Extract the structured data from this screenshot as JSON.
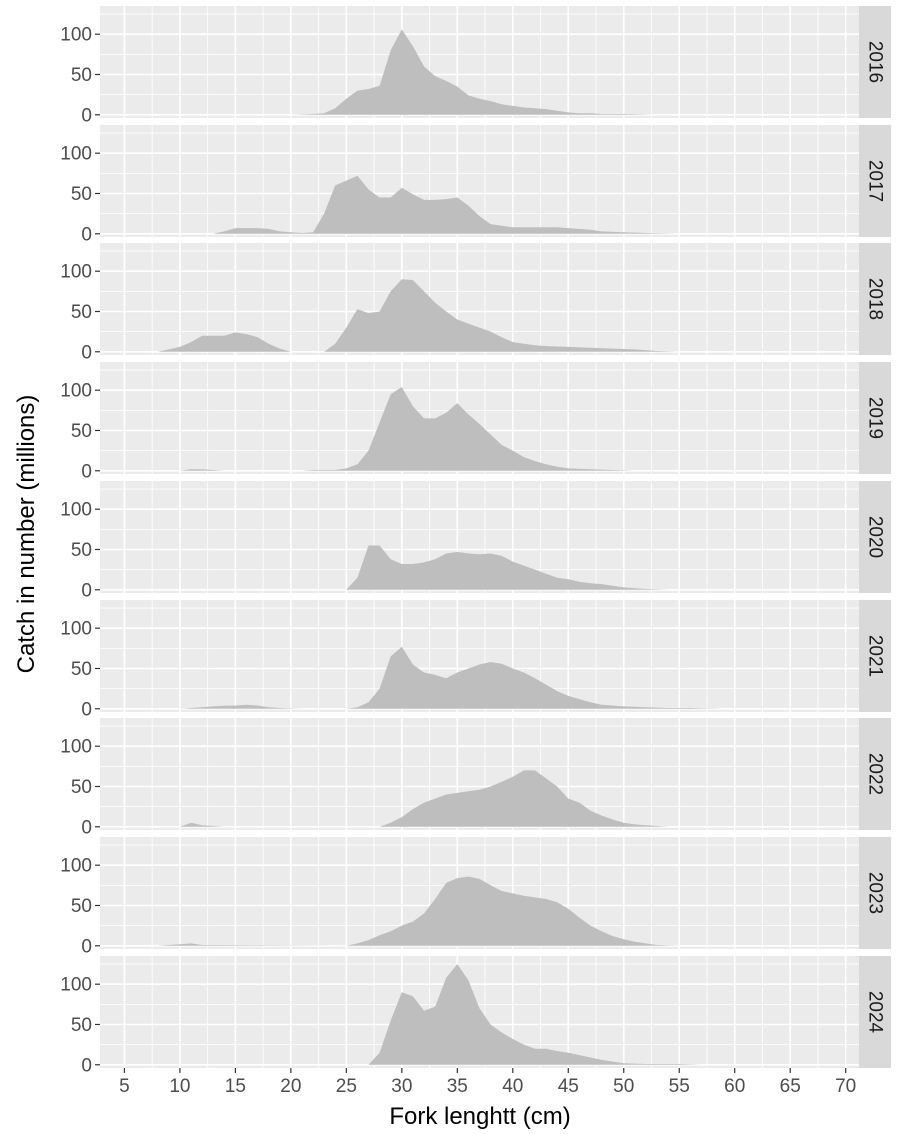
{
  "chart_data": {
    "type": "area",
    "xlabel": "Fork lenghtt  (cm)",
    "ylabel": "Catch in number (millions)",
    "xlim": [
      2.8,
      71.2
    ],
    "ylim": [
      -4,
      135
    ],
    "x_ticks": [
      5,
      10,
      15,
      20,
      25,
      30,
      35,
      40,
      45,
      50,
      55,
      60,
      65,
      70
    ],
    "y_ticks": [
      0,
      50,
      100
    ],
    "grid": true,
    "legend": "none",
    "colors": {
      "fill": "#bebebe",
      "panel": "#ebebeb",
      "strip": "#d9d9d9",
      "grid": "#ffffff"
    },
    "panels": [
      {
        "label": "2016",
        "points": [
          [
            20,
            0
          ],
          [
            22,
            1
          ],
          [
            23,
            2
          ],
          [
            24,
            8
          ],
          [
            25,
            20
          ],
          [
            26,
            30
          ],
          [
            27,
            32
          ],
          [
            28,
            36
          ],
          [
            29,
            80
          ],
          [
            30,
            106
          ],
          [
            31,
            85
          ],
          [
            32,
            60
          ],
          [
            33,
            48
          ],
          [
            34,
            42
          ],
          [
            35,
            35
          ],
          [
            36,
            24
          ],
          [
            37,
            20
          ],
          [
            38,
            17
          ],
          [
            39,
            13
          ],
          [
            40,
            11
          ],
          [
            41,
            9
          ],
          [
            42,
            8
          ],
          [
            43,
            7
          ],
          [
            44,
            5
          ],
          [
            45,
            3
          ],
          [
            46,
            2
          ],
          [
            47,
            2
          ],
          [
            48,
            1
          ],
          [
            50,
            1
          ],
          [
            53,
            0
          ]
        ]
      },
      {
        "label": "2017",
        "points": [
          [
            13,
            0
          ],
          [
            14,
            3
          ],
          [
            15,
            7
          ],
          [
            16,
            7
          ],
          [
            17,
            7
          ],
          [
            18,
            6
          ],
          [
            19,
            3
          ],
          [
            20,
            2
          ],
          [
            21,
            1
          ],
          [
            22,
            2
          ],
          [
            23,
            25
          ],
          [
            24,
            60
          ],
          [
            25,
            66
          ],
          [
            26,
            72
          ],
          [
            27,
            55
          ],
          [
            28,
            45
          ],
          [
            29,
            45
          ],
          [
            30,
            57
          ],
          [
            31,
            49
          ],
          [
            32,
            42
          ],
          [
            33,
            42
          ],
          [
            34,
            43
          ],
          [
            35,
            45
          ],
          [
            36,
            35
          ],
          [
            37,
            22
          ],
          [
            38,
            12
          ],
          [
            39,
            10
          ],
          [
            40,
            8
          ],
          [
            42,
            8
          ],
          [
            44,
            8
          ],
          [
            45,
            7
          ],
          [
            47,
            5
          ],
          [
            48,
            3
          ],
          [
            50,
            2
          ],
          [
            52,
            1
          ],
          [
            55,
            0
          ]
        ]
      },
      {
        "label": "2018",
        "points": [
          [
            8,
            0
          ],
          [
            9,
            3
          ],
          [
            10,
            6
          ],
          [
            11,
            12
          ],
          [
            12,
            20
          ],
          [
            13,
            20
          ],
          [
            14,
            20
          ],
          [
            15,
            24
          ],
          [
            16,
            22
          ],
          [
            17,
            18
          ],
          [
            18,
            10
          ],
          [
            19,
            4
          ],
          [
            20,
            0
          ],
          [
            23,
            0
          ],
          [
            24,
            10
          ],
          [
            25,
            30
          ],
          [
            26,
            53
          ],
          [
            27,
            48
          ],
          [
            28,
            50
          ],
          [
            29,
            75
          ],
          [
            30,
            90
          ],
          [
            31,
            89
          ],
          [
            32,
            75
          ],
          [
            33,
            61
          ],
          [
            34,
            50
          ],
          [
            35,
            40
          ],
          [
            36,
            35
          ],
          [
            37,
            30
          ],
          [
            38,
            25
          ],
          [
            39,
            18
          ],
          [
            40,
            12
          ],
          [
            41,
            10
          ],
          [
            42,
            8
          ],
          [
            43,
            7
          ],
          [
            45,
            6
          ],
          [
            47,
            5
          ],
          [
            49,
            4
          ],
          [
            51,
            3
          ],
          [
            53,
            1
          ],
          [
            55,
            0
          ]
        ]
      },
      {
        "label": "2019",
        "points": [
          [
            10,
            0
          ],
          [
            11,
            2
          ],
          [
            12,
            2
          ],
          [
            13,
            1
          ],
          [
            14,
            0
          ],
          [
            21,
            0
          ],
          [
            22,
            1
          ],
          [
            24,
            1
          ],
          [
            25,
            3
          ],
          [
            26,
            8
          ],
          [
            27,
            25
          ],
          [
            28,
            60
          ],
          [
            29,
            95
          ],
          [
            30,
            104
          ],
          [
            31,
            80
          ],
          [
            32,
            65
          ],
          [
            33,
            65
          ],
          [
            34,
            72
          ],
          [
            35,
            84
          ],
          [
            36,
            70
          ],
          [
            37,
            58
          ],
          [
            38,
            45
          ],
          [
            39,
            32
          ],
          [
            40,
            25
          ],
          [
            41,
            17
          ],
          [
            42,
            12
          ],
          [
            43,
            8
          ],
          [
            44,
            5
          ],
          [
            45,
            3
          ],
          [
            47,
            2
          ],
          [
            49,
            1
          ],
          [
            51,
            0
          ]
        ]
      },
      {
        "label": "2020",
        "points": [
          [
            25,
            0
          ],
          [
            26,
            15
          ],
          [
            27,
            55
          ],
          [
            28,
            55
          ],
          [
            29,
            38
          ],
          [
            30,
            32
          ],
          [
            31,
            32
          ],
          [
            32,
            34
          ],
          [
            33,
            38
          ],
          [
            34,
            45
          ],
          [
            35,
            47
          ],
          [
            36,
            45
          ],
          [
            37,
            44
          ],
          [
            38,
            45
          ],
          [
            39,
            42
          ],
          [
            40,
            35
          ],
          [
            41,
            30
          ],
          [
            42,
            25
          ],
          [
            43,
            20
          ],
          [
            44,
            15
          ],
          [
            45,
            13
          ],
          [
            46,
            10
          ],
          [
            47,
            8
          ],
          [
            48,
            7
          ],
          [
            49,
            5
          ],
          [
            50,
            3
          ],
          [
            52,
            1
          ],
          [
            54,
            0
          ]
        ]
      },
      {
        "label": "2021",
        "points": [
          [
            10,
            0
          ],
          [
            11,
            1
          ],
          [
            12,
            2
          ],
          [
            13,
            3
          ],
          [
            14,
            4
          ],
          [
            15,
            4
          ],
          [
            16,
            5
          ],
          [
            17,
            4
          ],
          [
            18,
            2
          ],
          [
            19,
            1
          ],
          [
            21,
            0
          ],
          [
            25,
            0
          ],
          [
            26,
            2
          ],
          [
            27,
            8
          ],
          [
            28,
            25
          ],
          [
            29,
            65
          ],
          [
            30,
            77
          ],
          [
            31,
            55
          ],
          [
            32,
            45
          ],
          [
            33,
            42
          ],
          [
            34,
            38
          ],
          [
            35,
            45
          ],
          [
            36,
            50
          ],
          [
            37,
            55
          ],
          [
            38,
            58
          ],
          [
            39,
            56
          ],
          [
            40,
            50
          ],
          [
            41,
            45
          ],
          [
            42,
            38
          ],
          [
            43,
            30
          ],
          [
            44,
            22
          ],
          [
            45,
            16
          ],
          [
            46,
            12
          ],
          [
            47,
            8
          ],
          [
            48,
            5
          ],
          [
            50,
            3
          ],
          [
            52,
            2
          ],
          [
            54,
            1
          ],
          [
            56,
            1
          ],
          [
            59,
            0
          ]
        ]
      },
      {
        "label": "2022",
        "points": [
          [
            10,
            0
          ],
          [
            11,
            5
          ],
          [
            12,
            2
          ],
          [
            13,
            1
          ],
          [
            14,
            0
          ],
          [
            28,
            0
          ],
          [
            29,
            5
          ],
          [
            30,
            12
          ],
          [
            31,
            22
          ],
          [
            32,
            30
          ],
          [
            33,
            35
          ],
          [
            34,
            40
          ],
          [
            35,
            42
          ],
          [
            36,
            44
          ],
          [
            37,
            46
          ],
          [
            38,
            50
          ],
          [
            39,
            56
          ],
          [
            40,
            62
          ],
          [
            41,
            70
          ],
          [
            42,
            70
          ],
          [
            43,
            60
          ],
          [
            44,
            50
          ],
          [
            45,
            35
          ],
          [
            46,
            30
          ],
          [
            47,
            20
          ],
          [
            48,
            14
          ],
          [
            49,
            9
          ],
          [
            50,
            5
          ],
          [
            51,
            3
          ],
          [
            53,
            1
          ],
          [
            54,
            0
          ]
        ]
      },
      {
        "label": "2023",
        "points": [
          [
            8,
            0
          ],
          [
            10,
            2
          ],
          [
            11,
            3
          ],
          [
            12,
            1
          ],
          [
            25,
            0
          ],
          [
            26,
            3
          ],
          [
            27,
            7
          ],
          [
            28,
            13
          ],
          [
            29,
            18
          ],
          [
            30,
            25
          ],
          [
            31,
            30
          ],
          [
            32,
            40
          ],
          [
            33,
            58
          ],
          [
            34,
            78
          ],
          [
            35,
            84
          ],
          [
            36,
            86
          ],
          [
            37,
            83
          ],
          [
            38,
            75
          ],
          [
            39,
            68
          ],
          [
            40,
            65
          ],
          [
            41,
            62
          ],
          [
            42,
            60
          ],
          [
            43,
            58
          ],
          [
            44,
            54
          ],
          [
            45,
            46
          ],
          [
            46,
            35
          ],
          [
            47,
            25
          ],
          [
            48,
            18
          ],
          [
            49,
            12
          ],
          [
            50,
            8
          ],
          [
            51,
            5
          ],
          [
            52,
            3
          ],
          [
            53,
            1
          ],
          [
            55,
            0
          ]
        ]
      },
      {
        "label": "2024",
        "points": [
          [
            27,
            0
          ],
          [
            28,
            15
          ],
          [
            29,
            55
          ],
          [
            30,
            90
          ],
          [
            31,
            85
          ],
          [
            32,
            67
          ],
          [
            33,
            72
          ],
          [
            34,
            108
          ],
          [
            35,
            125
          ],
          [
            36,
            105
          ],
          [
            37,
            70
          ],
          [
            38,
            50
          ],
          [
            39,
            40
          ],
          [
            40,
            32
          ],
          [
            41,
            25
          ],
          [
            42,
            20
          ],
          [
            43,
            20
          ],
          [
            44,
            17
          ],
          [
            45,
            15
          ],
          [
            46,
            12
          ],
          [
            47,
            9
          ],
          [
            48,
            6
          ],
          [
            49,
            4
          ],
          [
            50,
            2
          ],
          [
            52,
            1
          ],
          [
            55,
            1
          ],
          [
            57,
            0
          ]
        ]
      }
    ]
  }
}
